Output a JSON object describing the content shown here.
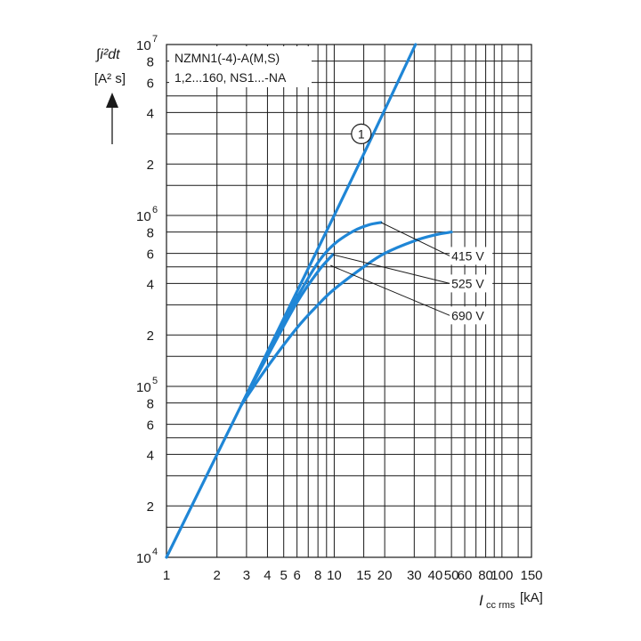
{
  "chart_data": {
    "type": "line",
    "title_lines": [
      "NZMN1(-4)-A(M,S)",
      "1,2...160, NS1...-NA"
    ],
    "ylabel": "∫i²dt",
    "yunit": "[A² s]",
    "xlabel": "I",
    "xlabel_sub": "cc rms",
    "xunit": "[kA]",
    "x_scale": "log",
    "y_scale": "log",
    "xlim": [
      1,
      150
    ],
    "ylim": [
      10000,
      10000000
    ],
    "grid": true,
    "x_ticks": [
      {
        "value": 1,
        "label": "1"
      },
      {
        "value": 2,
        "label": "2"
      },
      {
        "value": 3,
        "label": "3"
      },
      {
        "value": 4,
        "label": "4"
      },
      {
        "value": 5,
        "label": "5"
      },
      {
        "value": 6,
        "label": "6"
      },
      {
        "value": 8,
        "label": "8"
      },
      {
        "value": 10,
        "label": "10"
      },
      {
        "value": 15,
        "label": "15"
      },
      {
        "value": 20,
        "label": "20"
      },
      {
        "value": 30,
        "label": "30"
      },
      {
        "value": 40,
        "label": "40"
      },
      {
        "value": 50,
        "label": "50"
      },
      {
        "value": 60,
        "label": "60"
      },
      {
        "value": 80,
        "label": "80"
      },
      {
        "value": 100,
        "label": "100"
      },
      {
        "value": 150,
        "label": "150"
      }
    ],
    "x_minor_grid": [
      7,
      9,
      70,
      90,
      125
    ],
    "y_ticks": [
      {
        "value": 10000,
        "base": "10",
        "exp": "4"
      },
      {
        "value": 20000,
        "label": "2"
      },
      {
        "value": 40000,
        "label": "4"
      },
      {
        "value": 60000,
        "label": "6"
      },
      {
        "value": 80000,
        "label": "8"
      },
      {
        "value": 100000,
        "base": "10",
        "exp": "5"
      },
      {
        "value": 200000,
        "label": "2"
      },
      {
        "value": 400000,
        "label": "4"
      },
      {
        "value": 600000,
        "label": "6"
      },
      {
        "value": 800000,
        "label": "8"
      },
      {
        "value": 1000000,
        "base": "10",
        "exp": "6"
      },
      {
        "value": 2000000,
        "label": "2"
      },
      {
        "value": 4000000,
        "label": "4"
      },
      {
        "value": 6000000,
        "label": "6"
      },
      {
        "value": 8000000,
        "label": "8"
      },
      {
        "value": 10000000,
        "base": "10",
        "exp": "7"
      }
    ],
    "y_minor_grid": [
      15000,
      30000,
      50000,
      150000,
      300000,
      500000,
      1500000,
      3000000,
      5000000
    ],
    "series": [
      {
        "name": "1",
        "x": [
          1,
          10,
          30.5
        ],
        "y": [
          10000,
          1000000,
          10000000
        ]
      },
      {
        "name": "415 V",
        "x": [
          2.8,
          4,
          6,
          8,
          10,
          13,
          16,
          19
        ],
        "y": [
          78000,
          155000,
          330000,
          530000,
          680000,
          810000,
          880000,
          910000
        ]
      },
      {
        "name": "525 V",
        "x": [
          2.8,
          4,
          6,
          8,
          9.8
        ],
        "y": [
          78000,
          150000,
          310000,
          470000,
          590000
        ]
      },
      {
        "name": "690 V",
        "x": [
          2.8,
          4,
          6,
          8,
          10,
          15,
          20,
          30,
          40,
          50
        ],
        "y": [
          78000,
          130000,
          220000,
          300000,
          370000,
          500000,
          600000,
          710000,
          770000,
          800000
        ]
      }
    ],
    "annotations": [
      {
        "text": "1",
        "style": "circled",
        "at": [
          14.5,
          3000000
        ]
      },
      {
        "text": "415 V",
        "series": "415 V",
        "from": [
          19,
          910000
        ],
        "to": [
          50,
          580000
        ]
      },
      {
        "text": "525 V",
        "series": "525 V",
        "from": [
          9.8,
          590000
        ],
        "to": [
          50,
          400000
        ]
      },
      {
        "text": "690 V",
        "series": "690 V",
        "from": [
          9.5,
          510000
        ],
        "to": [
          50,
          260000
        ]
      }
    ]
  }
}
